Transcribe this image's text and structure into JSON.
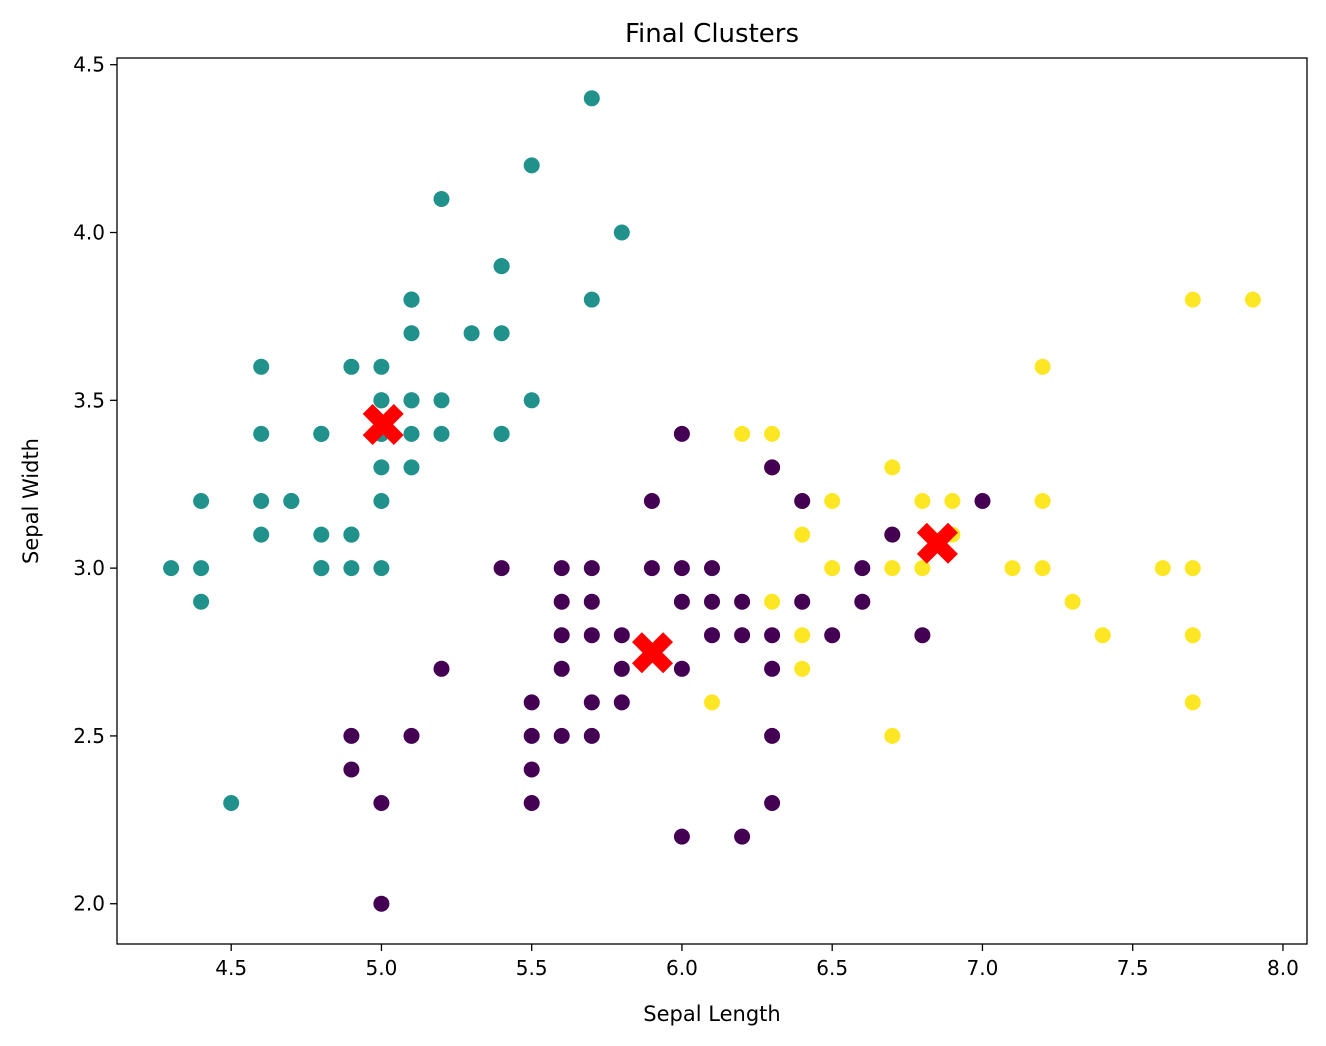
{
  "chart_data": {
    "type": "scatter",
    "title": "Final Clusters",
    "xlabel": "Sepal Length",
    "ylabel": "Sepal Width",
    "xlim": [
      4.12,
      8.08
    ],
    "ylim": [
      1.88,
      4.52
    ],
    "xticks": [
      "4.5",
      "5.0",
      "5.5",
      "6.0",
      "6.5",
      "7.0",
      "7.5",
      "8.0"
    ],
    "yticks": [
      "2.0",
      "2.5",
      "3.0",
      "3.5",
      "4.0",
      "4.5"
    ],
    "grid": false,
    "legend": "none",
    "series": [
      {
        "color": "#21918c",
        "points": [
          [
            5.1,
            3.5
          ],
          [
            4.9,
            3.0
          ],
          [
            4.7,
            3.2
          ],
          [
            4.6,
            3.1
          ],
          [
            5.0,
            3.6
          ],
          [
            5.4,
            3.9
          ],
          [
            4.6,
            3.4
          ],
          [
            5.0,
            3.4
          ],
          [
            4.4,
            2.9
          ],
          [
            4.9,
            3.1
          ],
          [
            5.4,
            3.7
          ],
          [
            4.8,
            3.4
          ],
          [
            4.8,
            3.0
          ],
          [
            4.3,
            3.0
          ],
          [
            5.8,
            4.0
          ],
          [
            5.7,
            4.4
          ],
          [
            5.4,
            3.9
          ],
          [
            5.1,
            3.5
          ],
          [
            5.7,
            3.8
          ],
          [
            5.1,
            3.8
          ],
          [
            5.4,
            3.4
          ],
          [
            5.1,
            3.7
          ],
          [
            4.6,
            3.6
          ],
          [
            5.1,
            3.3
          ],
          [
            4.8,
            3.4
          ],
          [
            5.0,
            3.0
          ],
          [
            5.0,
            3.4
          ],
          [
            5.2,
            3.5
          ],
          [
            5.2,
            3.4
          ],
          [
            4.7,
            3.2
          ],
          [
            4.8,
            3.1
          ],
          [
            5.4,
            3.4
          ],
          [
            5.2,
            4.1
          ],
          [
            5.5,
            4.2
          ],
          [
            4.9,
            3.1
          ],
          [
            5.0,
            3.2
          ],
          [
            5.5,
            3.5
          ],
          [
            4.9,
            3.6
          ],
          [
            4.4,
            3.0
          ],
          [
            5.1,
            3.4
          ],
          [
            5.0,
            3.5
          ],
          [
            4.5,
            2.3
          ],
          [
            4.4,
            3.2
          ],
          [
            5.0,
            3.5
          ],
          [
            5.1,
            3.8
          ],
          [
            4.8,
            3.0
          ],
          [
            5.1,
            3.8
          ],
          [
            4.6,
            3.2
          ],
          [
            5.3,
            3.7
          ],
          [
            5.0,
            3.3
          ]
        ]
      },
      {
        "color": "#440154",
        "points": [
          [
            6.0,
            3.4
          ],
          [
            5.9,
            3.2
          ],
          [
            7.0,
            3.2
          ],
          [
            5.4,
            3.0
          ],
          [
            5.6,
            3.0
          ],
          [
            5.7,
            3.0
          ],
          [
            5.9,
            3.0
          ],
          [
            6.0,
            3.0
          ],
          [
            6.1,
            3.0
          ],
          [
            6.6,
            3.0
          ],
          [
            5.6,
            2.9
          ],
          [
            5.7,
            2.9
          ],
          [
            6.0,
            2.9
          ],
          [
            6.1,
            2.9
          ],
          [
            6.2,
            2.9
          ],
          [
            6.4,
            2.9
          ],
          [
            6.6,
            2.9
          ],
          [
            5.6,
            2.8
          ],
          [
            5.7,
            2.8
          ],
          [
            5.8,
            2.8
          ],
          [
            6.1,
            2.8
          ],
          [
            6.2,
            2.8
          ],
          [
            6.3,
            2.8
          ],
          [
            6.5,
            2.8
          ],
          [
            6.8,
            2.8
          ],
          [
            5.2,
            2.7
          ],
          [
            5.6,
            2.7
          ],
          [
            5.8,
            2.7
          ],
          [
            6.0,
            2.7
          ],
          [
            6.3,
            2.7
          ],
          [
            5.5,
            2.6
          ],
          [
            5.7,
            2.6
          ],
          [
            5.8,
            2.6
          ],
          [
            4.9,
            2.5
          ],
          [
            5.1,
            2.5
          ],
          [
            5.5,
            2.5
          ],
          [
            5.6,
            2.5
          ],
          [
            5.7,
            2.5
          ],
          [
            6.3,
            2.5
          ],
          [
            4.9,
            2.4
          ],
          [
            5.5,
            2.4
          ],
          [
            5.0,
            2.3
          ],
          [
            5.5,
            2.3
          ],
          [
            6.3,
            2.3
          ],
          [
            6.0,
            2.2
          ],
          [
            6.2,
            2.2
          ],
          [
            5.0,
            2.0
          ]
        ]
      },
      {
        "color": "#fde725",
        "points": [
          [
            7.7,
            3.8
          ],
          [
            7.9,
            3.8
          ],
          [
            7.2,
            3.6
          ],
          [
            6.2,
            3.4
          ],
          [
            6.3,
            3.4
          ],
          [
            6.3,
            3.3
          ],
          [
            6.7,
            3.3
          ],
          [
            6.4,
            3.2
          ],
          [
            6.5,
            3.2
          ],
          [
            6.8,
            3.2
          ],
          [
            6.9,
            3.2
          ],
          [
            7.2,
            3.2
          ],
          [
            6.4,
            3.1
          ],
          [
            6.7,
            3.1
          ],
          [
            6.9,
            3.1
          ],
          [
            6.5,
            3.0
          ],
          [
            6.7,
            3.0
          ],
          [
            6.8,
            3.0
          ],
          [
            7.1,
            3.0
          ],
          [
            7.2,
            3.0
          ],
          [
            7.6,
            3.0
          ],
          [
            7.7,
            3.0
          ],
          [
            6.3,
            2.9
          ],
          [
            7.3,
            2.9
          ],
          [
            6.4,
            2.8
          ],
          [
            7.4,
            2.8
          ],
          [
            7.7,
            2.8
          ],
          [
            6.4,
            2.7
          ],
          [
            6.1,
            2.6
          ],
          [
            7.7,
            2.6
          ],
          [
            6.7,
            2.5
          ]
        ]
      },
      {
        "color": "#440154",
        "points": [
          [
            6.3,
            3.3
          ],
          [
            6.4,
            3.2
          ],
          [
            6.7,
            3.1
          ]
        ]
      }
    ],
    "centroids": {
      "color": "#ff0000",
      "marker": "X",
      "points": [
        [
          5.006,
          3.428
        ],
        [
          5.902,
          2.748
        ],
        [
          6.85,
          3.074
        ]
      ]
    }
  }
}
